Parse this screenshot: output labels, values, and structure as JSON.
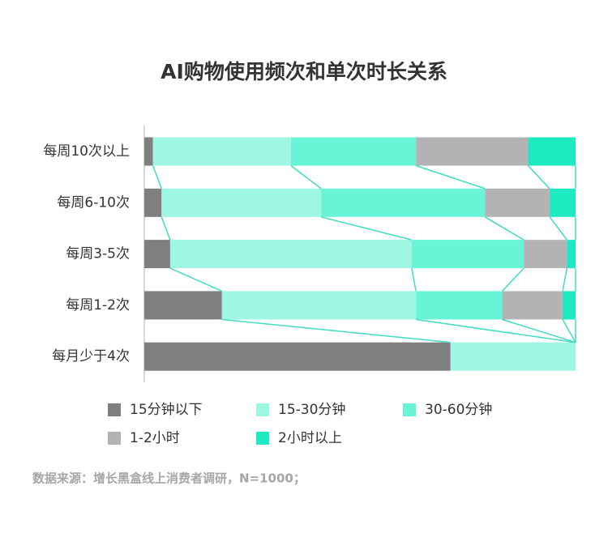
{
  "chart_data": {
    "type": "stacked-barh",
    "title": "AI购物使用频次和单次时长关系",
    "categories": [
      "每周10次以上",
      "每周6-10次",
      "每周3-5次",
      "每周1-2次",
      "每月少于4次"
    ],
    "series": [
      {
        "name": "15分钟以下",
        "color": "#7f7f7f",
        "values": [
          2,
          4,
          6,
          18,
          71
        ]
      },
      {
        "name": "15-30分钟",
        "color": "#9ef7e3",
        "values": [
          32,
          37,
          56,
          45,
          29
        ]
      },
      {
        "name": "30-60分钟",
        "color": "#68f4d7",
        "values": [
          29,
          38,
          26,
          20,
          0
        ]
      },
      {
        "name": "1-2小时",
        "color": "#b3b3b3",
        "values": [
          26,
          15,
          10,
          14,
          0
        ]
      },
      {
        "name": "2小时以上",
        "color": "#1eeac1",
        "values": [
          11,
          6,
          2,
          3,
          0
        ]
      }
    ],
    "xlim": [
      0,
      100
    ],
    "source": "数据来源：增长黑盒线上消费者调研，N=1000；"
  }
}
